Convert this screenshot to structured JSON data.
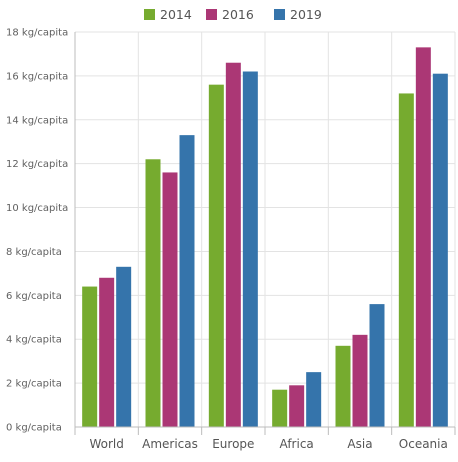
{
  "chart_data": {
    "type": "bar",
    "title": "",
    "xlabel": "",
    "ylabel": "",
    "categories": [
      "World",
      "Americas",
      "Europe",
      "Africa",
      "Asia",
      "Oceania"
    ],
    "series": [
      {
        "name": "2014",
        "color": "#76ab2f",
        "values": [
          6.4,
          12.2,
          15.6,
          1.7,
          3.7,
          15.2
        ]
      },
      {
        "name": "2016",
        "color": "#ab3775",
        "values": [
          6.8,
          11.6,
          16.6,
          1.9,
          4.2,
          17.3
        ]
      },
      {
        "name": "2019",
        "color": "#3574ab",
        "values": [
          7.3,
          13.3,
          16.2,
          2.5,
          5.6,
          16.1
        ]
      }
    ],
    "ylim": [
      0,
      18
    ],
    "yticks": [
      "0 kg/capita",
      "2 kg/capita",
      "4 kg/capita",
      "6 kg/capita",
      "8 kg/capita",
      "10 kg/capita",
      "12 kg/capita",
      "14 kg/capita",
      "16 kg/capita",
      "18 kg/capita"
    ],
    "ytick_values": [
      0,
      2,
      4,
      6,
      8,
      10,
      12,
      14,
      16,
      18
    ],
    "grid": true,
    "legend_position": "top-center"
  }
}
